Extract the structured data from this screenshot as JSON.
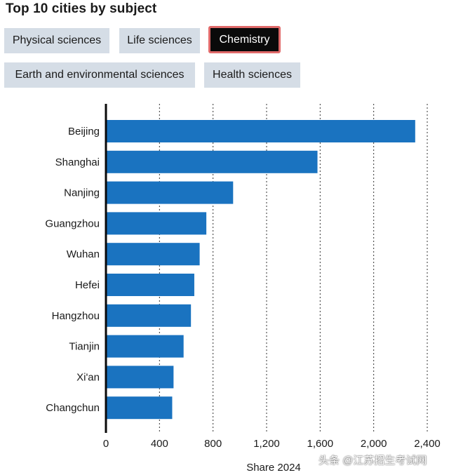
{
  "title": "Top 10 cities by subject",
  "tabs": [
    {
      "label": "Physical sciences",
      "active": false
    },
    {
      "label": "Life sciences",
      "active": false
    },
    {
      "label": "Chemistry",
      "active": true
    },
    {
      "label": "Earth and environmental sciences",
      "active": false
    },
    {
      "label": "Health sciences",
      "active": false
    }
  ],
  "colors": {
    "bar": "#1a73c0",
    "active_tab_border": "#e06a6a",
    "tab_background": "#d5dde6"
  },
  "chart_data": {
    "type": "bar",
    "orientation": "horizontal",
    "categories": [
      "Beijing",
      "Shanghai",
      "Nanjing",
      "Guangzhou",
      "Wuhan",
      "Hefei",
      "Hangzhou",
      "Tianjin",
      "Xi'an",
      "Changchun"
    ],
    "values": [
      2310,
      1580,
      950,
      750,
      700,
      660,
      635,
      580,
      505,
      495
    ],
    "xlabel": "Share 2024",
    "ylabel": "",
    "xlim": [
      0,
      2400
    ],
    "xticks": [
      "0",
      "400",
      "800",
      "1,200",
      "1,600",
      "2,000",
      "2,400"
    ],
    "grid": "vertical dotted"
  },
  "watermark": "头条 @江苏招生考试网"
}
